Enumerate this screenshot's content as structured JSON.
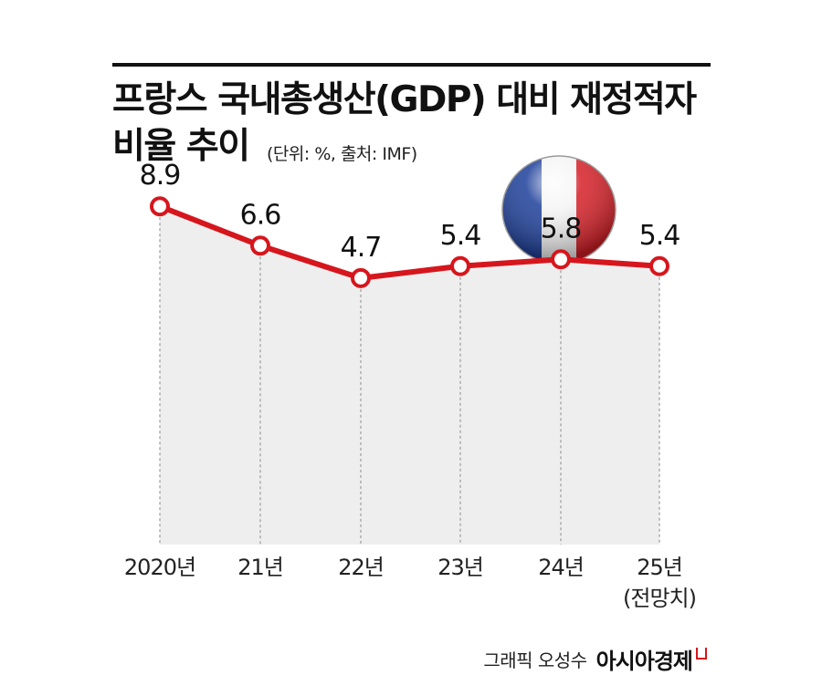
{
  "title": {
    "line1": "프랑스 국내총생산(GDP) 대비 재정적자",
    "line2": "비율 추이",
    "subtitle": "(단위: %, 출처: IMF)"
  },
  "colors": {
    "line": "#d6161d",
    "area": "#eeeeee",
    "text": "#111111",
    "flag_blue": "#1d3f9a",
    "flag_white": "#f4f4f4",
    "flag_red": "#d61f26"
  },
  "icons": {
    "flag": "france-flag-icon"
  },
  "chart_data": {
    "type": "line",
    "categories": [
      "2020년",
      "21년",
      "22년",
      "23년",
      "24년",
      "25년"
    ],
    "category_notes": [
      "",
      "",
      "",
      "",
      "",
      "(전망치)"
    ],
    "values": [
      8.9,
      6.6,
      4.7,
      5.4,
      5.8,
      5.4
    ],
    "data_labels": [
      "8.9",
      "6.6",
      "4.7",
      "5.4",
      "5.8",
      "5.4"
    ],
    "area_fill": true,
    "grid": false,
    "ylim": [
      -10.9,
      10.3
    ]
  },
  "footer": {
    "credit": "그래픽 오성수",
    "brand": "아시아경제"
  }
}
